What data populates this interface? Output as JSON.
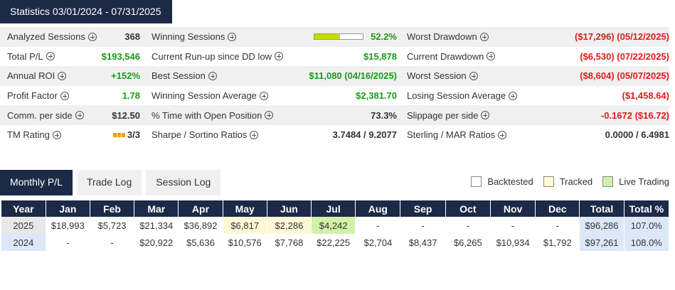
{
  "header": {
    "title": "Statistics 03/01/2024 - 07/31/2025"
  },
  "stats": [
    [
      {
        "label": "Analyzed Sessions",
        "value": "368",
        "color": "dark"
      },
      {
        "label": "Winning Sessions",
        "value": "52.2%",
        "color": "green",
        "progress": 0.522
      },
      {
        "label": "Worst Drawdown",
        "value": "($17,296) (05/12/2025)",
        "color": "red"
      }
    ],
    [
      {
        "label": "Total P/L",
        "value": "$193,546",
        "color": "green"
      },
      {
        "label": "Current Run-up since DD low",
        "value": "$15,878",
        "color": "green"
      },
      {
        "label": "Current Drawdown",
        "value": "($6,530) (07/22/2025)",
        "color": "red"
      }
    ],
    [
      {
        "label": "Annual ROI",
        "value": "+152%",
        "color": "green"
      },
      {
        "label": "Best Session",
        "value": "$11,080 (04/16/2025)",
        "color": "green"
      },
      {
        "label": "Worst Session",
        "value": "($8,604) (05/07/2025)",
        "color": "red"
      }
    ],
    [
      {
        "label": "Profit Factor",
        "value": "1.78",
        "color": "green"
      },
      {
        "label": "Winning Session Average",
        "value": "$2,381.70",
        "color": "green"
      },
      {
        "label": "Losing Session Average",
        "value": "($1,458.64)",
        "color": "red"
      }
    ],
    [
      {
        "label": "Comm. per side",
        "value": "$12.50",
        "color": "dark"
      },
      {
        "label": "% Time with Open Position",
        "value": "73.3%",
        "color": "dark"
      },
      {
        "label": "Slippage per side",
        "value": "-0.1672 ($16.72)",
        "color": "red"
      }
    ],
    [
      {
        "label": "TM Rating",
        "value": "3/3",
        "color": "dark",
        "rating": 3
      },
      {
        "label": "Sharpe / Sortino Ratios",
        "value": "3.7484 / 9.2077",
        "color": "dark"
      },
      {
        "label": "Sterling / MAR Ratios",
        "value": "0.0000 / 6.4981",
        "color": "dark"
      }
    ]
  ],
  "tabs": [
    {
      "label": "Monthly P/L",
      "active": true
    },
    {
      "label": "Trade Log",
      "active": false
    },
    {
      "label": "Session Log",
      "active": false
    }
  ],
  "legend": [
    {
      "label": "Backtested",
      "color": "#ffffff"
    },
    {
      "label": "Tracked",
      "color": "#fdf8d6"
    },
    {
      "label": "Live Trading",
      "color": "#d2f0a8"
    }
  ],
  "table": {
    "headers": [
      "Year",
      "Jan",
      "Feb",
      "Mar",
      "Apr",
      "May",
      "Jun",
      "Jul",
      "Aug",
      "Sep",
      "Oct",
      "Nov",
      "Dec",
      "Total",
      "Total %"
    ],
    "rows": [
      {
        "cells": [
          "2025",
          "$18,993",
          "$5,723",
          "$21,334",
          "$36,892",
          "$6,817",
          "$2,286",
          "$4,242",
          "-",
          "-",
          "-",
          "-",
          "-",
          "$96,286",
          "107.0%"
        ],
        "styles": [
          "year",
          "",
          "",
          "",
          "",
          "tracked",
          "tracked",
          "live",
          "",
          "",
          "",
          "",
          "",
          "tot",
          "tot"
        ]
      },
      {
        "cells": [
          "2024",
          "-",
          "-",
          "$20,922",
          "$5,636",
          "$10,576",
          "$7,768",
          "$22,225",
          "$2,704",
          "$8,437",
          "$6,265",
          "$10,934",
          "$1,792",
          "$97,261",
          "108.0%"
        ],
        "styles": [
          "year",
          "",
          "",
          "",
          "",
          "",
          "",
          "",
          "",
          "",
          "",
          "",
          "",
          "tot",
          "tot"
        ]
      }
    ]
  }
}
